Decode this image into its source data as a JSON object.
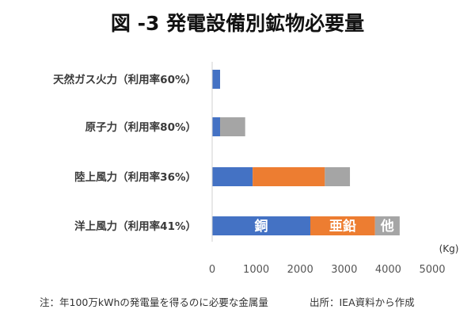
{
  "chart_data": {
    "type": "bar",
    "orientation": "horizontal",
    "stacked": true,
    "title": "図 -3 発電設備別鉱物必要量",
    "categories": [
      "天然ガス火力（利用率60%）",
      "原子力（利用率80%）",
      "陸上風力（利用率36%）",
      "洋上風力（利用率41%）"
    ],
    "series": [
      {
        "name": "銅",
        "color": "#4472C4",
        "values": [
          180,
          180,
          920,
          2230
        ]
      },
      {
        "name": "亜鉛",
        "color": "#ED7D31",
        "values": [
          0,
          0,
          1640,
          1470
        ]
      },
      {
        "name": "他",
        "color": "#A5A5A5",
        "values": [
          0,
          570,
          570,
          560
        ]
      }
    ],
    "xlim": [
      0,
      5000
    ],
    "xticks": [
      "0",
      "1000",
      "2000",
      "3000",
      "4000",
      "5000"
    ],
    "unit_label": "(Kg)",
    "grid": false,
    "legend": "none"
  },
  "footnote": "注：年100万kWhの発電量を得るのに必要な金属量",
  "source": "出所：IEA資料から作成"
}
